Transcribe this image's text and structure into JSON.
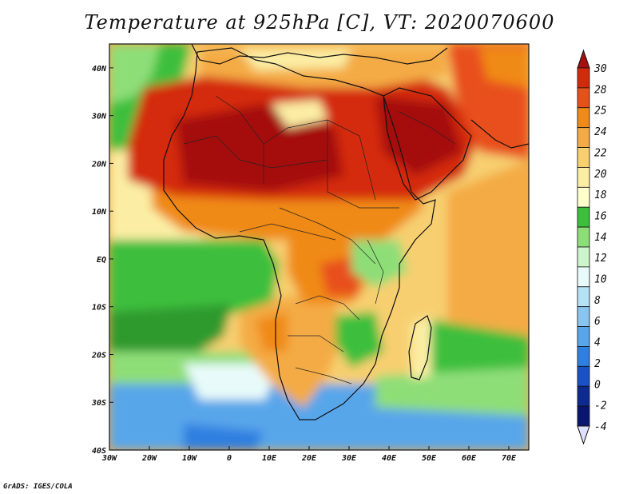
{
  "title": "Temperature at 925hPa [C], VT: 2020070600",
  "credit": "GrADS: IGES/COLA",
  "map": {
    "lon_range": [
      -30,
      75
    ],
    "lat_range": [
      -40,
      45
    ],
    "lon_ticks": [
      {
        "value": -30,
        "label": "30W"
      },
      {
        "value": -20,
        "label": "20W"
      },
      {
        "value": -10,
        "label": "10W"
      },
      {
        "value": 0,
        "label": "0"
      },
      {
        "value": 10,
        "label": "10E"
      },
      {
        "value": 20,
        "label": "20E"
      },
      {
        "value": 30,
        "label": "30E"
      },
      {
        "value": 40,
        "label": "40E"
      },
      {
        "value": 50,
        "label": "50E"
      },
      {
        "value": 60,
        "label": "60E"
      },
      {
        "value": 70,
        "label": "70E"
      }
    ],
    "lat_ticks": [
      {
        "value": 40,
        "label": "40N"
      },
      {
        "value": 30,
        "label": "30N"
      },
      {
        "value": 20,
        "label": "20N"
      },
      {
        "value": 10,
        "label": "10N"
      },
      {
        "value": 0,
        "label": "EQ"
      },
      {
        "value": -10,
        "label": "10S"
      },
      {
        "value": -20,
        "label": "20S"
      },
      {
        "value": -30,
        "label": "30S"
      },
      {
        "value": -40,
        "label": "40S"
      }
    ]
  },
  "colorbar": {
    "levels": [
      "30",
      "28",
      "25",
      "24",
      "22",
      "20",
      "18",
      "16",
      "14",
      "12",
      "10",
      "8",
      "6",
      "4",
      "2",
      "0",
      "-2",
      "-4"
    ],
    "colors": [
      "#a50f0f",
      "#d42a0c",
      "#e8501a",
      "#f08a18",
      "#f4ab45",
      "#f7cf6f",
      "#fbeea4",
      "#ffffcc",
      "#3cbf3c",
      "#8ede78",
      "#ccf5cc",
      "#e8fbfa",
      "#b6e2f6",
      "#8ac4f0",
      "#58a6ea",
      "#2f7fe0",
      "#1a50c8",
      "#0d2a90",
      "#0a1570",
      "#dde0ff"
    ]
  }
}
